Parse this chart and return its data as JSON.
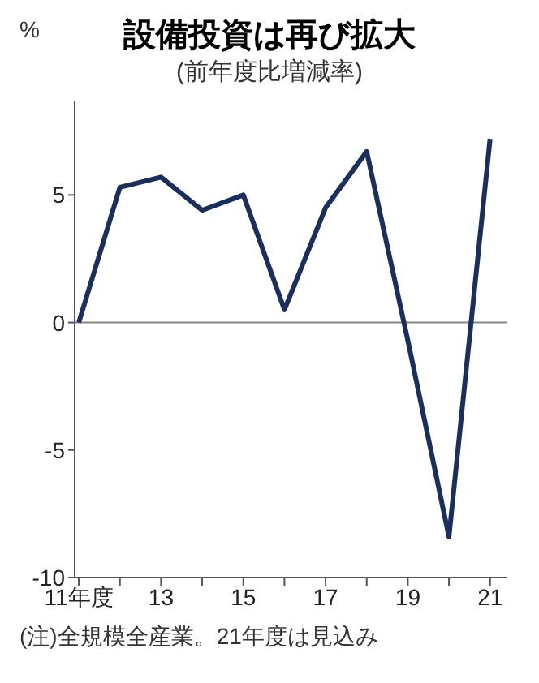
{
  "chart_data": {
    "type": "line",
    "title": "設備投資は再び拡大",
    "subtitle": "(前年度比増減率)",
    "ylabel": "%",
    "categories": [
      "11年度",
      null,
      "13",
      null,
      "15",
      null,
      "17",
      null,
      "19",
      null,
      "21"
    ],
    "series": [
      {
        "color": "#1b2f5c",
        "values": [
          0,
          5.3,
          5.7,
          4.4,
          5.0,
          0.5,
          4.5,
          6.7,
          -0.7,
          -8.4,
          7.2
        ]
      }
    ],
    "ylim": [
      -10,
      8.7
    ],
    "yticks": [
      -10,
      -5,
      0,
      5
    ],
    "ref_lines": [
      {
        "axis": "y",
        "value": 0,
        "color": "#888888"
      }
    ],
    "marker": "none",
    "line_style": "solid",
    "annotations": [
      "(注)全規模全産業。21年度は見込み"
    ]
  }
}
